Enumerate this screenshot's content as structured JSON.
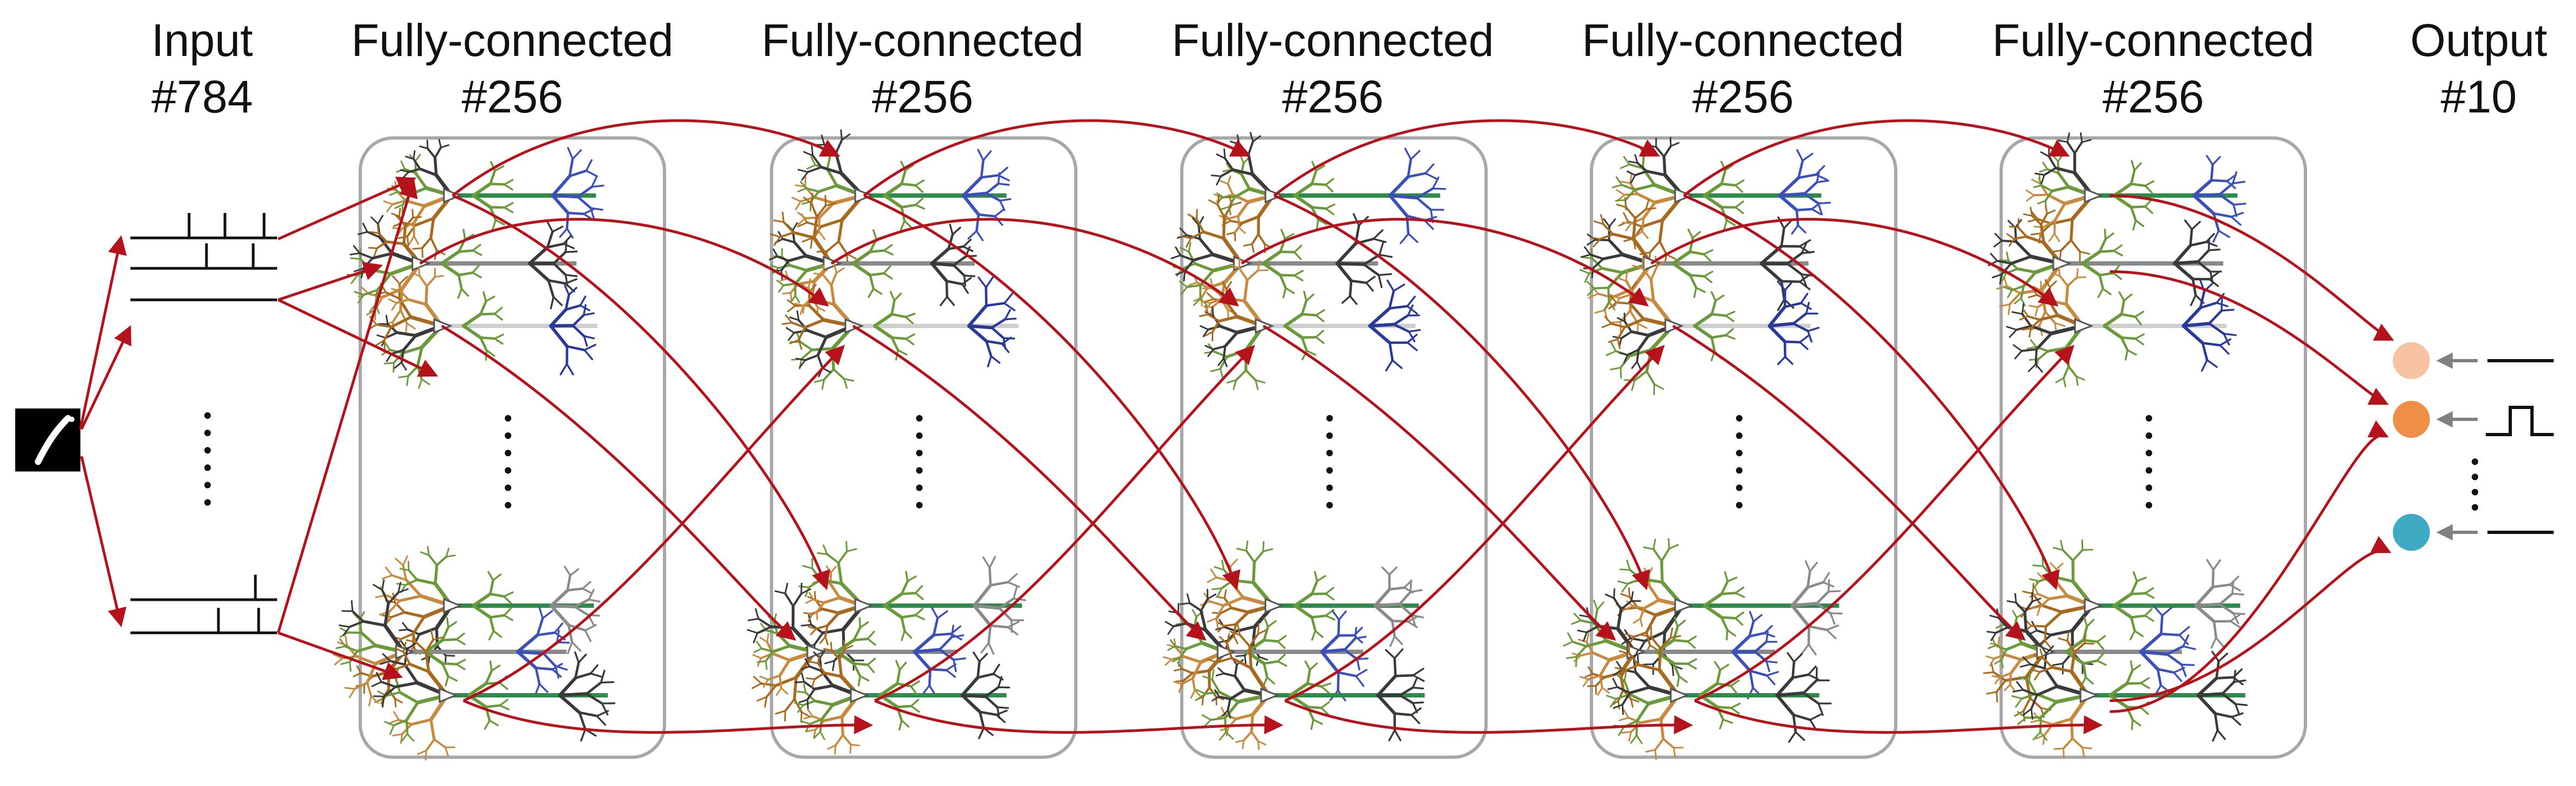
{
  "diagram": {
    "colors": {
      "connection": "#b5121b",
      "layer_box": "#a8a8a8",
      "arrow_feedback": "#808080",
      "signal": "#111111",
      "dendrite_palette": [
        "#a86a1e",
        "#c88a3e",
        "#6a9a3a",
        "#2e8b4a",
        "#3a3a3a",
        "#8a8a8a",
        "#cfcfcf",
        "#3b50b8",
        "#2a3a9a"
      ]
    },
    "input": {
      "label": "Input",
      "count": "#784",
      "icon": "digit-image-icon"
    },
    "hidden_layers": [
      {
        "label": "Fully-connected",
        "count": "#256"
      },
      {
        "label": "Fully-connected",
        "count": "#256"
      },
      {
        "label": "Fully-connected",
        "count": "#256"
      },
      {
        "label": "Fully-connected",
        "count": "#256"
      },
      {
        "label": "Fully-connected",
        "count": "#256"
      }
    ],
    "output": {
      "label": "Output",
      "count": "#10",
      "units": [
        {
          "color": "#f7c3a1",
          "signal": "flat"
        },
        {
          "color": "#ef8f47",
          "signal": "pulse"
        },
        {
          "color": "#3faac4",
          "signal": "flat"
        }
      ]
    }
  }
}
